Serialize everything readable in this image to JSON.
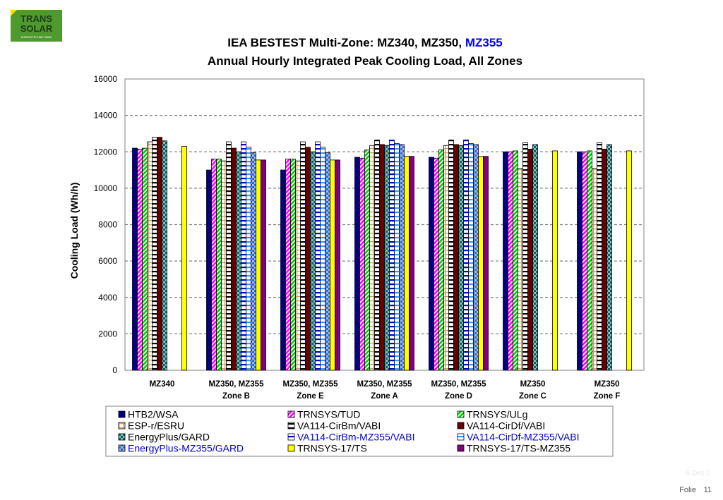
{
  "logo": {
    "line1": "TRANS",
    "line2": "SOLAR",
    "line3": "ENERGIETECHNIK GMBH"
  },
  "footer": {
    "label": "Folie",
    "page": "11",
    "faded": "6 Dez 2"
  },
  "colors": {
    "title_highlight": "#0000ff",
    "legend_highlight": "#0000cc",
    "gridline": "#808080",
    "plot_border": "#808080",
    "logo_green": "#4e9a2e"
  },
  "chart_data": {
    "type": "bar",
    "title_line1_prefix": "IEA BESTEST Multi-Zone: MZ340, MZ350, ",
    "title_line1_highlight": "MZ355",
    "title_line2": "Annual Hourly Integrated Peak Cooling Load, All Zones",
    "ylabel": "Cooling Load (Wh/h)",
    "xlabel": "",
    "ylim": [
      0,
      16000
    ],
    "yticks": [
      0,
      2000,
      4000,
      6000,
      8000,
      10000,
      12000,
      14000,
      16000
    ],
    "grid": true,
    "legend_position": "bottom",
    "categories": [
      [
        "MZ340",
        ""
      ],
      [
        "MZ350, MZ355",
        "Zone B"
      ],
      [
        "MZ350, MZ355",
        "Zone E"
      ],
      [
        "MZ350, MZ355",
        "Zone A"
      ],
      [
        "MZ350, MZ355",
        "Zone D"
      ],
      [
        "MZ350",
        "Zone C"
      ],
      [
        "MZ350",
        "Zone F"
      ]
    ],
    "series": [
      {
        "name": "HTB2/WSA",
        "pattern": "solid",
        "color": "#000080",
        "highlight": false,
        "values": [
          12200,
          11000,
          11000,
          11700,
          11700,
          12000,
          12000
        ]
      },
      {
        "name": "TRNSYS/TUD",
        "pattern": "diag",
        "color": "#ff00ff",
        "highlight": false,
        "values": [
          12150,
          11600,
          11600,
          11650,
          11650,
          12000,
          12000
        ]
      },
      {
        "name": "TRNSYS/ULg",
        "pattern": "diag",
        "color": "#00cc00",
        "highlight": false,
        "values": [
          12200,
          11600,
          11600,
          12100,
          12100,
          12050,
          12050
        ]
      },
      {
        "name": "ESP-r/ESRU",
        "pattern": "grid",
        "color": "#cc9966",
        "highlight": false,
        "values": [
          12550,
          11500,
          11500,
          12350,
          12350,
          11100,
          11100
        ]
      },
      {
        "name": "VA114-CirBm/VABI",
        "pattern": "hstripe",
        "color": "#000000",
        "highlight": false,
        "values": [
          12800,
          12550,
          12550,
          12650,
          12650,
          12500,
          12500
        ]
      },
      {
        "name": "VA114-CirDf/VABI",
        "pattern": "solid",
        "color": "#660000",
        "highlight": false,
        "values": [
          12800,
          12200,
          12250,
          12400,
          12400,
          12150,
          12150
        ]
      },
      {
        "name": "EnergyPlus/GARD",
        "pattern": "check",
        "color": "#006666",
        "highlight": false,
        "values": [
          12600,
          12000,
          12000,
          12350,
          12350,
          12400,
          12400
        ]
      },
      {
        "name": "VA114-CirBm-MZ355/VABI",
        "pattern": "hstripe",
        "color": "#0000cc",
        "highlight": true,
        "values": [
          null,
          12550,
          12550,
          12650,
          12650,
          null,
          null
        ]
      },
      {
        "name": "VA114-CirDf-MZ355/VABI",
        "pattern": "hstripe",
        "color": "#3399ff",
        "highlight": true,
        "values": [
          null,
          12250,
          12250,
          12450,
          12450,
          null,
          null
        ]
      },
      {
        "name": "EnergyPlus-MZ355/GARD",
        "pattern": "check",
        "color": "#3366cc",
        "highlight": true,
        "values": [
          null,
          11950,
          11950,
          12400,
          12400,
          null,
          null
        ]
      },
      {
        "name": "TRNSYS-17/TS",
        "pattern": "solid",
        "color": "#ffff00",
        "highlight": false,
        "values": [
          12300,
          11550,
          11550,
          11750,
          11750,
          12050,
          12050
        ]
      },
      {
        "name": "TRNSYS-17/TS-MZ355",
        "pattern": "solid",
        "color": "#800080",
        "highlight": false,
        "values": [
          null,
          11550,
          11550,
          11750,
          11750,
          null,
          null
        ]
      }
    ]
  }
}
